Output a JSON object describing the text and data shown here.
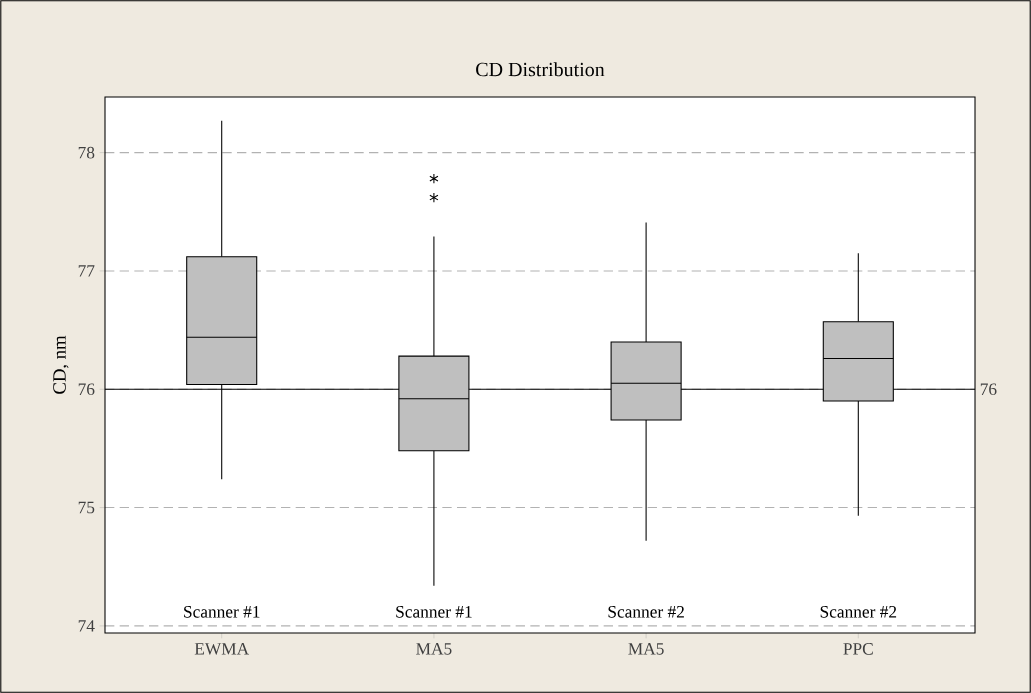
{
  "chart_data": {
    "type": "box",
    "title": "CD Distribution",
    "ylabel": "CD, nm",
    "categories": [
      "EWMA",
      "MA5",
      "MA5",
      "PPC"
    ],
    "boxes": [
      {
        "low": 75.24,
        "q1": 76.04,
        "median": 76.44,
        "q3": 77.12,
        "high": 78.27
      },
      {
        "low": 74.34,
        "q1": 75.48,
        "median": 75.92,
        "q3": 76.28,
        "high": 77.29,
        "outliers": [
          77.78,
          77.62
        ]
      },
      {
        "low": 74.72,
        "q1": 75.74,
        "median": 76.05,
        "q3": 76.4,
        "high": 77.41
      },
      {
        "low": 74.93,
        "q1": 75.9,
        "median": 76.26,
        "q3": 76.57,
        "high": 77.15
      }
    ],
    "color": "#bfbfbf",
    "ylim": [
      73.94,
      78.47
    ],
    "yticks": [
      74,
      75,
      76,
      77,
      78
    ],
    "grid": "y",
    "ref_lines": [
      {
        "axis": "y",
        "value": 76,
        "label": "76",
        "color": "#000000"
      }
    ],
    "annotations": [
      "Scanner #1",
      "Scanner #1",
      "Scanner #2",
      "Scanner #2"
    ]
  }
}
